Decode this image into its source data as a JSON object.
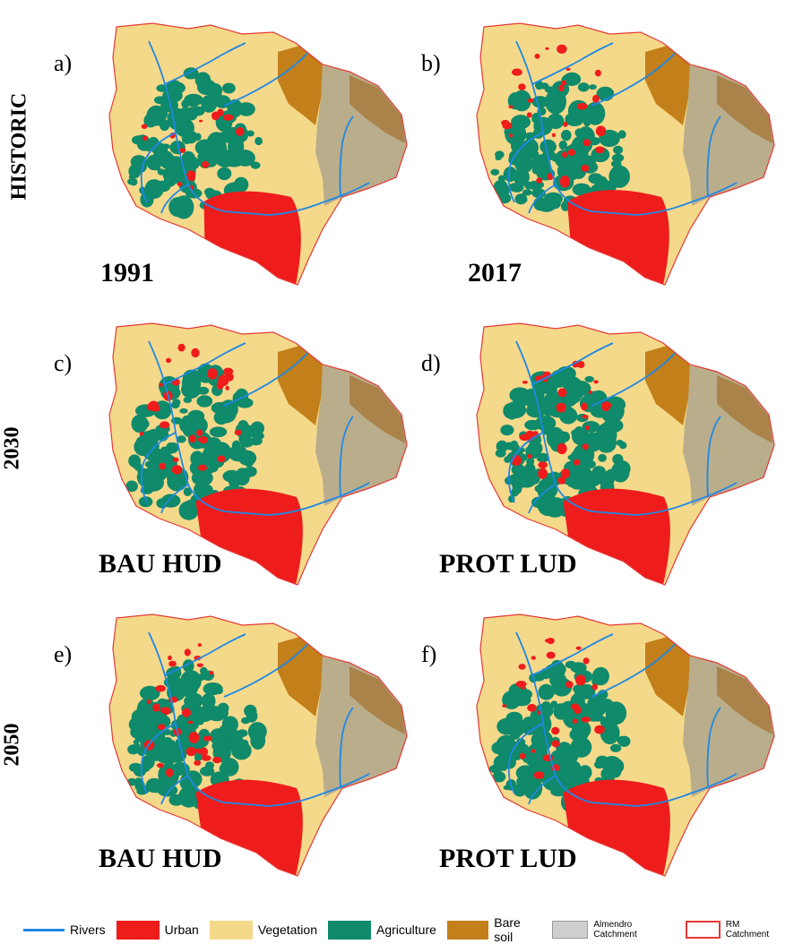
{
  "rows": [
    {
      "label": "HISTORIC"
    },
    {
      "label": "2030"
    },
    {
      "label": "2050"
    }
  ],
  "panels": [
    {
      "letter": "a)",
      "caption": "1991",
      "urban": "small",
      "agri": "medium"
    },
    {
      "letter": "b)",
      "caption": "2017",
      "urban": "medium",
      "agri": "medium"
    },
    {
      "letter": "c)",
      "caption": "BAU HUD",
      "urban": "large",
      "agri": "large"
    },
    {
      "letter": "d)",
      "caption": "PROT LUD",
      "urban": "large",
      "agri": "large"
    },
    {
      "letter": "e)",
      "caption": "BAU HUD",
      "urban": "large",
      "agri": "large"
    },
    {
      "letter": "f)",
      "caption": "PROT LUD",
      "urban": "large",
      "agri": "large"
    }
  ],
  "legend": [
    {
      "label": "Rivers",
      "kind": "line",
      "color": "#1e88e5"
    },
    {
      "label": "Urban",
      "kind": "fill",
      "color": "#ef1c1c"
    },
    {
      "label": "Vegetation",
      "kind": "fill",
      "color": "#f5d98a"
    },
    {
      "label": "Agriculture",
      "kind": "fill",
      "color": "#0f8a6a"
    },
    {
      "label": "Bare soil",
      "kind": "fill",
      "color": "#c27f1a"
    },
    {
      "label": "Almendro Catchment",
      "kind": "fill",
      "color": "#cfcfcf",
      "small": true
    },
    {
      "label": "RM Catchment",
      "kind": "outline",
      "color": "#e53935",
      "small": true
    }
  ],
  "colors": {
    "vegetation": "#f5d98a",
    "urban": "#ef1c1c",
    "agriculture": "#0f8a6a",
    "bare_soil": "#c27f1a",
    "almendro": "#b9ad8c",
    "river": "#1e88e5",
    "outline": "#e53935"
  }
}
